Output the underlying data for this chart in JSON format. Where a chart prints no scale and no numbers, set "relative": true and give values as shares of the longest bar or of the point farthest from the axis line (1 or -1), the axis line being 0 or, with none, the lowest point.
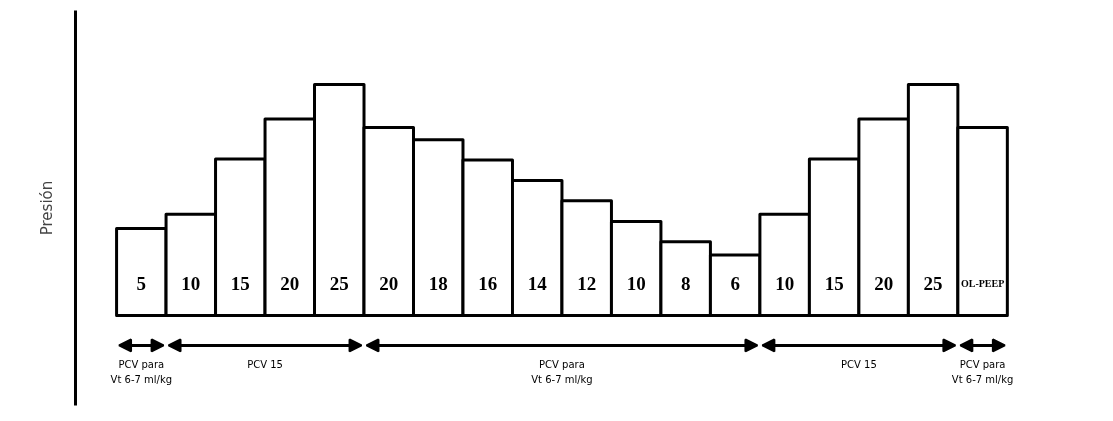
{
  "chart_data": {
    "type": "bar",
    "relative": true,
    "ylabel": "Presión",
    "color": "#ffffff",
    "categories": [
      "5",
      "10",
      "15",
      "20",
      "25",
      "20",
      "18",
      "16",
      "14",
      "12",
      "10",
      "8",
      "6",
      "10",
      "15",
      "20",
      "25",
      "OL-PEEP"
    ],
    "values": [
      0.376,
      0.438,
      0.677,
      0.85,
      1,
      0.814,
      0.761,
      0.673,
      0.584,
      0.496,
      0.407,
      0.319,
      0.261,
      0.438,
      0.677,
      0.85,
      1,
      0.814
    ],
    "annotations": [
      "PCV para\nVt 6-7 ml/kg",
      "PCV 15",
      "PCV para\nVt 6-7 ml/kg",
      "PCV 15",
      "PCV para\nVt 6-7 ml/kg"
    ]
  }
}
